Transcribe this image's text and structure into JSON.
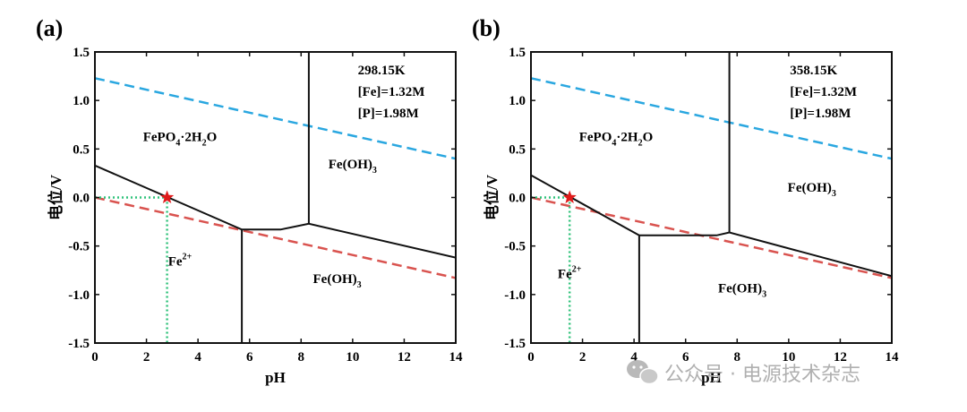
{
  "watermark": {
    "text": "公众号 · 电源技术杂志",
    "icon": "wechat-icon",
    "color": "#b0b0b0"
  },
  "chart_data": [
    {
      "panel": "(a)",
      "type": "line",
      "xlabel": "pH",
      "ylabel": "电位/V",
      "xlim": [
        0,
        14
      ],
      "ylim": [
        -1.5,
        1.5
      ],
      "xticks": [
        0,
        2,
        4,
        6,
        8,
        10,
        12,
        14
      ],
      "yticks": [
        1.5,
        1.0,
        0.5,
        0.0,
        -0.5,
        -1.0,
        -1.5
      ],
      "ytick_labels": [
        "1.5",
        "1.0",
        "0.5",
        "0.0",
        "-0.5",
        "-1.0",
        "-1.5"
      ],
      "info": [
        "298.15K",
        "[Fe]=1.32M",
        "[P]=1.98M"
      ],
      "boundaries": [
        {
          "name": "FePO4/Fe2+",
          "points": [
            [
              0,
              0.33
            ],
            [
              5.7,
              -0.33
            ]
          ]
        },
        {
          "name": "lower",
          "points": [
            [
              5.7,
              -0.33
            ],
            [
              7.2,
              -0.33
            ],
            [
              8.3,
              -0.27
            ],
            [
              14,
              -0.62
            ]
          ]
        },
        {
          "name": "Fe2+/Fe(OH)3 vertical",
          "points": [
            [
              5.7,
              -0.33
            ],
            [
              5.7,
              -1.5
            ]
          ]
        },
        {
          "name": "FePO4/Fe(OH)3 vertical",
          "points": [
            [
              8.3,
              -0.27
            ],
            [
              8.3,
              1.5
            ]
          ]
        }
      ],
      "water_lines": [
        {
          "name": "O2",
          "color": "#2aa7e0",
          "points": [
            [
              0,
              1.23
            ],
            [
              14,
              0.4
            ]
          ]
        },
        {
          "name": "H2",
          "color": "#d9534f",
          "points": [
            [
              0,
              0.0
            ],
            [
              14,
              -0.83
            ]
          ]
        }
      ],
      "marker": {
        "x": 2.8,
        "y": 0.0,
        "color": "#e01b1b",
        "guide_color": "#2fc27a"
      },
      "regions": [
        {
          "label": "FePO",
          "sub1": "4",
          "mid": "·2H",
          "sub2": "2",
          "end": "O",
          "x": 3.3,
          "y": 0.58
        },
        {
          "label": "Fe(OH)",
          "sub1": "3",
          "x": 10.0,
          "y": 0.3
        },
        {
          "label": "Fe",
          "sup1": "2+",
          "x": 3.3,
          "y": -0.7
        },
        {
          "label": "Fe(OH)",
          "sub1": "3",
          "x": 9.4,
          "y": -0.88
        }
      ]
    },
    {
      "panel": "(b)",
      "type": "line",
      "xlabel": "pH",
      "ylabel": "电位/V",
      "xlim": [
        0,
        14
      ],
      "ylim": [
        -1.5,
        1.5
      ],
      "xticks": [
        0,
        2,
        4,
        6,
        8,
        10,
        12,
        14
      ],
      "yticks": [
        1.5,
        1.0,
        0.5,
        0.0,
        -0.5,
        -1.0,
        -1.5
      ],
      "ytick_labels": [
        "1.5",
        "1.0",
        "0.5",
        "0.0",
        "-0.5",
        "-1.0",
        "-1.5"
      ],
      "info": [
        "358.15K",
        "[Fe]=1.32M",
        "[P]=1.98M"
      ],
      "boundaries": [
        {
          "name": "FePO4/Fe2+",
          "points": [
            [
              0,
              0.23
            ],
            [
              4.2,
              -0.39
            ]
          ]
        },
        {
          "name": "lower",
          "points": [
            [
              4.2,
              -0.39
            ],
            [
              7.2,
              -0.39
            ],
            [
              7.7,
              -0.36
            ],
            [
              14,
              -0.81
            ]
          ]
        },
        {
          "name": "Fe2+/Fe(OH)3 vertical",
          "points": [
            [
              4.2,
              -0.39
            ],
            [
              4.2,
              -1.5
            ]
          ]
        },
        {
          "name": "FePO4/Fe(OH)3 vertical",
          "points": [
            [
              7.7,
              -0.36
            ],
            [
              7.7,
              1.5
            ]
          ]
        }
      ],
      "water_lines": [
        {
          "name": "O2",
          "color": "#2aa7e0",
          "points": [
            [
              0,
              1.23
            ],
            [
              14,
              0.4
            ]
          ]
        },
        {
          "name": "H2",
          "color": "#d9534f",
          "points": [
            [
              0,
              0.0
            ],
            [
              14,
              -0.83
            ]
          ]
        }
      ],
      "marker": {
        "x": 1.5,
        "y": 0.0,
        "color": "#e01b1b",
        "guide_color": "#2fc27a"
      },
      "regions": [
        {
          "label": "FePO",
          "sub1": "4",
          "mid": "·2H",
          "sub2": "2",
          "end": "O",
          "x": 3.3,
          "y": 0.58
        },
        {
          "label": "Fe(OH)",
          "sub1": "3",
          "x": 10.9,
          "y": 0.06
        },
        {
          "label": "Fe",
          "sup1": "2+",
          "x": 1.5,
          "y": -0.83
        },
        {
          "label": "Fe(OH)",
          "sub1": "3",
          "x": 8.2,
          "y": -0.98
        }
      ]
    }
  ]
}
